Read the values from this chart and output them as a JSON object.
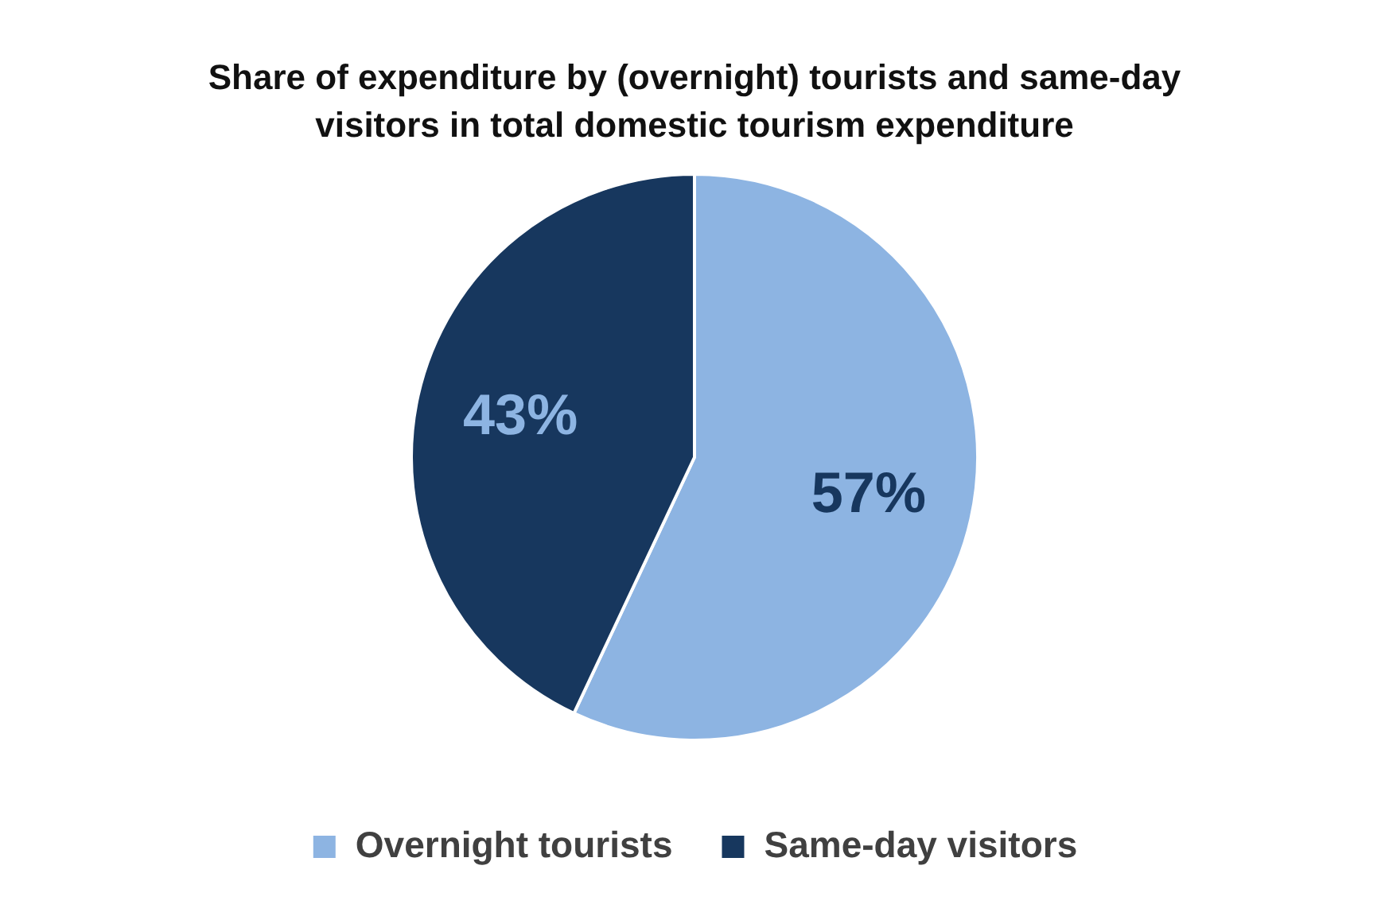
{
  "chart_data": {
    "type": "pie",
    "title": "Share of expenditure by (overnight) tourists and same-day visitors in total domestic tourism expenditure",
    "categories": [
      "Overnight tourists",
      "Same-day visitors"
    ],
    "values": [
      57,
      43
    ],
    "colors": [
      "#8db4e2",
      "#17375e"
    ],
    "value_labels": [
      "57%",
      "43%"
    ],
    "legend": "bottom"
  }
}
